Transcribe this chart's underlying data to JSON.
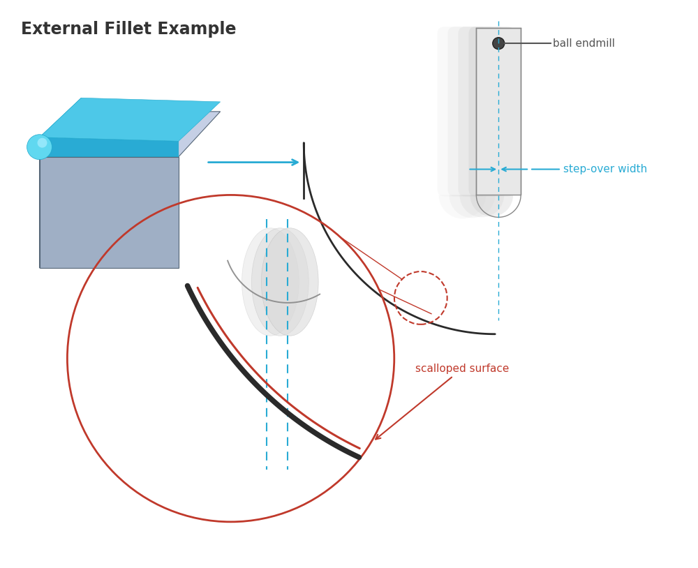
{
  "title": "External Fillet Example",
  "title_fontsize": 17,
  "title_fontweight": "bold",
  "title_color": "#333333",
  "background_color": "#ffffff",
  "label_ball_endmill": "ball endmill",
  "label_step_over": "step-over width",
  "label_scalloped": "scalloped surface",
  "cyan_color": "#29ABD4",
  "red_color": "#C0392B",
  "dark_gray": "#444444",
  "tool_gray_face": "#e0e0e0",
  "tool_gray_edge": "#888888",
  "box_left_face": "#8a95b0",
  "box_front_face": "#9fafc5",
  "box_top_face": "#c5cfe5",
  "fillet_cyan_dark": "#1ea8cc",
  "fillet_cyan_mid": "#29ABD4",
  "fillet_cyan_light": "#4DC8E8",
  "fillet_cyan_corner": "#60D8F0",
  "zoom_bg": "#e8e8e8"
}
